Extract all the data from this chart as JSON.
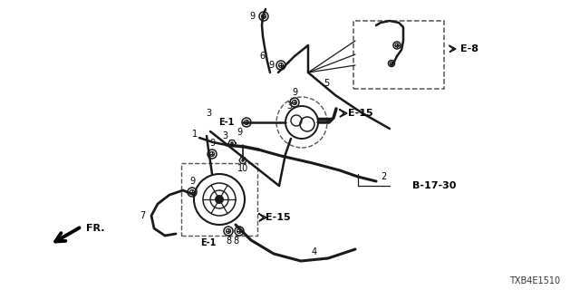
{
  "bg_color": "#ffffff",
  "fig_width": 6.4,
  "fig_height": 3.2,
  "diagram_code": "TXB4E1510",
  "line_color": "#1a1a1a",
  "dashed_color": "#555555",
  "text_color": "#000000",
  "labels": {
    "E8": "E-8",
    "E15_top": "E-15",
    "E15_bot": "E-1",
    "E1_top": "E-1",
    "B1730": "B-17-30",
    "FR": "FR.",
    "p1": "1",
    "p2": "2",
    "p3a": "3",
    "p3b": "3",
    "p4": "4",
    "p5": "5",
    "p6": "6",
    "p7": "7",
    "p8a": "8",
    "p8b": "8",
    "p9a": "9",
    "p9b": "9",
    "p9c": "9",
    "p9d": "9",
    "p9e": "9",
    "p9f": "9",
    "p9g": "9",
    "p10": "10",
    "E15_mid": "E-15"
  }
}
